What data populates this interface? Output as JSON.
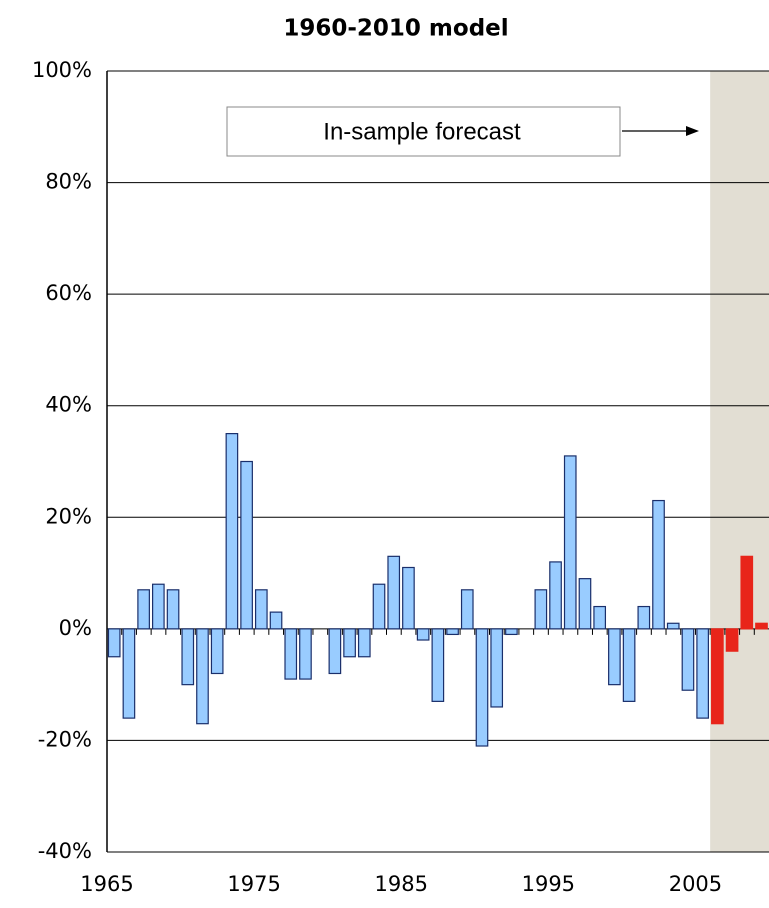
{
  "chart_data": {
    "type": "bar",
    "title": "1960-2010 model",
    "categories": [
      1965,
      1966,
      1967,
      1968,
      1969,
      1970,
      1971,
      1972,
      1973,
      1974,
      1975,
      1976,
      1977,
      1978,
      1979,
      1980,
      1981,
      1982,
      1983,
      1984,
      1985,
      1986,
      1987,
      1988,
      1989,
      1990,
      1991,
      1992,
      1993,
      1994,
      1995,
      1996,
      1997,
      1998,
      1999,
      2000,
      2001,
      2002,
      2003,
      2004,
      2005,
      2006,
      2007,
      2008,
      2009
    ],
    "series": [
      {
        "color": "#99ccff",
        "values": [
          -5,
          -16,
          7,
          8,
          7,
          -10,
          -17,
          -8,
          35,
          30,
          7,
          3,
          -9,
          -9,
          null,
          -8,
          -5,
          -5,
          8,
          13,
          11,
          -2,
          -13,
          -1,
          7,
          -21,
          -14,
          -1,
          null,
          7,
          12,
          31,
          9,
          4,
          -10,
          -13,
          4,
          23,
          1,
          -11,
          -16,
          null,
          null,
          null,
          null
        ]
      },
      {
        "color": "#e8251a",
        "values": [
          null,
          null,
          null,
          null,
          null,
          null,
          null,
          null,
          null,
          null,
          null,
          null,
          null,
          null,
          null,
          null,
          null,
          null,
          null,
          null,
          null,
          null,
          null,
          null,
          null,
          null,
          null,
          null,
          null,
          null,
          null,
          null,
          null,
          null,
          null,
          null,
          null,
          null,
          null,
          null,
          null,
          -17,
          -4,
          13,
          1
        ]
      }
    ],
    "xlim": [
      1965,
      2010
    ],
    "xticks": [
      1965,
      1975,
      1985,
      1995,
      2005
    ],
    "ylim": [
      -40,
      100
    ],
    "yticks": [
      {
        "value": -40,
        "label": "-40%"
      },
      {
        "value": -20,
        "label": "-20%"
      },
      {
        "value": 0,
        "label": "0%"
      },
      {
        "value": 20,
        "label": "20%"
      },
      {
        "value": 40,
        "label": "40%"
      },
      {
        "value": 60,
        "label": "60%"
      },
      {
        "value": 80,
        "label": "80%"
      },
      {
        "value": 100,
        "label": "100%"
      }
    ],
    "grid": true,
    "shade_from": 2006,
    "annotation": "In-sample forecast"
  }
}
